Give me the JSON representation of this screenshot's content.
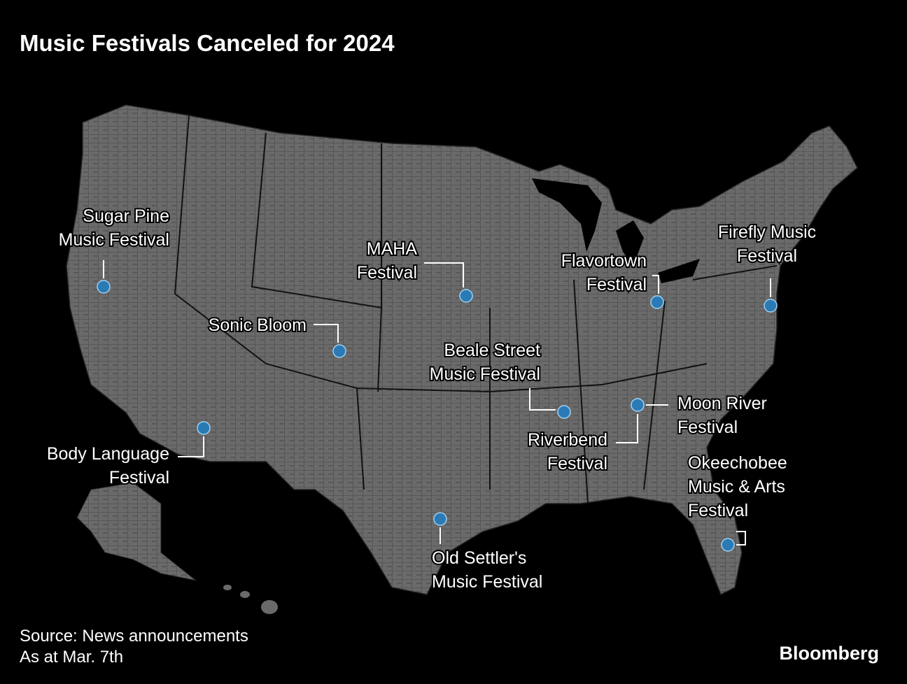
{
  "header": {
    "title": "Music Festivals Canceled for 2024"
  },
  "festivals": [
    {
      "label": [
        "Sugar Pine",
        "Music Festival"
      ]
    },
    {
      "label": [
        "MAHA",
        "Festival"
      ]
    },
    {
      "label": [
        "Sonic Bloom"
      ]
    },
    {
      "label": [
        "Body Language",
        "Festival"
      ]
    },
    {
      "label": [
        "Beale Street",
        "Music Festival"
      ]
    },
    {
      "label": [
        "Old Settler's",
        "Music Festival"
      ]
    },
    {
      "label": [
        "Riverbend",
        "Festival"
      ]
    },
    {
      "label": [
        "Moon River",
        "Festival"
      ]
    },
    {
      "label": [
        "Flavortown",
        "Festival"
      ]
    },
    {
      "label": [
        "Firefly Music",
        "Festival"
      ]
    },
    {
      "label": [
        "Okeechobee",
        "Music & Arts",
        "Festival"
      ]
    }
  ],
  "footer": {
    "source": "Source: News announcements",
    "date": "As at Mar. 7th",
    "brand": "Bloomberg"
  }
}
